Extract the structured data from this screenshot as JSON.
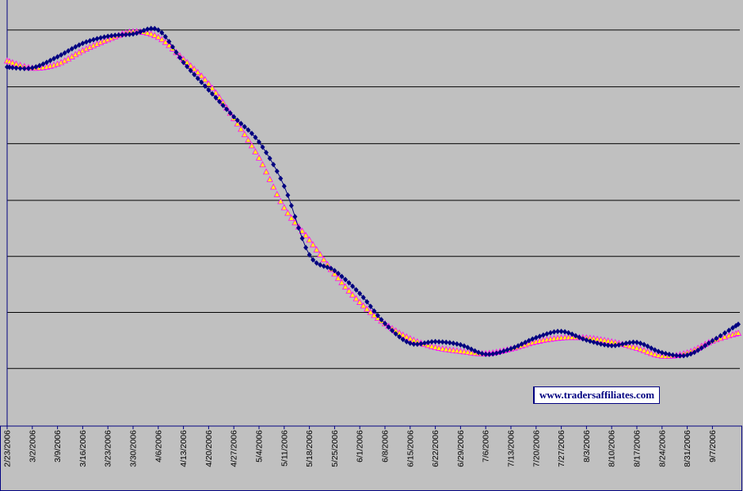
{
  "watermark": "www.tradersaffiliates.com",
  "colors": {
    "background": "#c0c0c0",
    "grid": "#000000",
    "series1_line": "#000080",
    "series1_marker": "#000080",
    "series2_marker_fill": "#ffff00",
    "series2_marker_edge": "#ff00ff"
  },
  "chart_data": {
    "type": "line",
    "title": "",
    "xlabel": "",
    "ylabel": "",
    "y_tick_labels_visible": false,
    "grid": "horizontal",
    "legend": "none",
    "categories": [
      "2/23/2006",
      "3/2/2006",
      "3/9/2006",
      "3/16/2006",
      "3/23/2006",
      "3/30/2006",
      "4/6/2006",
      "4/13/2006",
      "4/20/2006",
      "4/27/2006",
      "5/4/2006",
      "5/11/2006",
      "5/18/2006",
      "5/25/2006",
      "6/1/2006",
      "6/8/2006",
      "6/15/2006",
      "6/22/2006",
      "6/29/2006",
      "7/6/2006",
      "7/13/2006",
      "7/20/2006",
      "7/27/2006",
      "8/3/2006",
      "8/10/2006",
      "8/17/2006",
      "8/24/2006",
      "8/31/2006",
      "9/7/2006"
    ],
    "series": [
      {
        "name": "",
        "marker": "diamond",
        "values": [
          85,
          86,
          72,
          55,
          46,
          43,
          38,
          79,
          114,
          148,
          180,
          236,
          323,
          343,
          372,
          410,
          435,
          433,
          437,
          449,
          442,
          428,
          420,
          431,
          438,
          434,
          447,
          450,
          432
        ]
      },
      {
        "name": "",
        "marker": "triangle",
        "values": [
          77,
          86,
          81,
          64,
          50,
          40,
          47,
          75,
          106,
          150,
          200,
          263,
          304,
          347,
          383,
          410,
          429,
          440,
          445,
          448,
          442,
          433,
          428,
          428,
          433,
          441,
          451,
          447,
          432
        ]
      }
    ],
    "extra_points": [
      {
        "x": "9/11/2006",
        "series1": 411,
        "series2": 422
      }
    ],
    "ylim": [
      0,
      540
    ],
    "y_grid_values": [
      38,
      110,
      182,
      254,
      325,
      396,
      467
    ],
    "y_scale": "inverted"
  }
}
